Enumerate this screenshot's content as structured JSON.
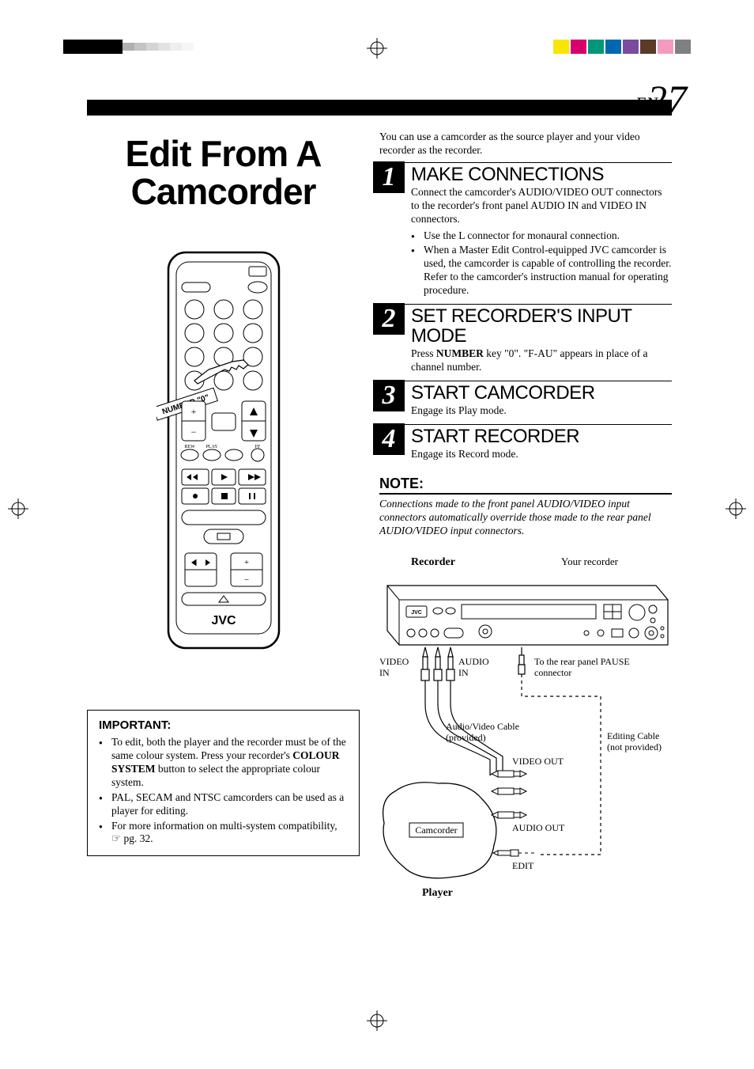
{
  "page": {
    "lang_tag": "EN",
    "number": "27"
  },
  "title": "Edit From A Camcorder",
  "remote_label": "NUMBER \"0\"",
  "brand": "JVC",
  "important": {
    "heading": "IMPORTANT:",
    "items": [
      "To edit, both the player and the recorder must be of the same colour system. Press your recorder's COLOUR SYSTEM button to select the appropriate colour system.",
      "PAL, SECAM and NTSC camcorders can be used as a player for editing.",
      "For more information on multi-system compatibility, ☞ pg. 32."
    ]
  },
  "intro": "You can use a camcorder as the source player and your video recorder as the recorder.",
  "steps": [
    {
      "n": "1",
      "title": "MAKE CONNECTIONS",
      "body": "Connect the camcorder's AUDIO/VIDEO OUT connectors to the recorder's front panel AUDIO IN and VIDEO IN connectors.",
      "bullets": [
        "Use the L connector for monaural connection.",
        "When a Master Edit Control-equipped JVC camcorder is used, the camcorder is capable of controlling the recorder. Refer to the camcorder's instruction manual for operating procedure."
      ]
    },
    {
      "n": "2",
      "title": "SET RECORDER'S INPUT MODE",
      "body": "Press NUMBER key \"0\". \"F-AU\" appears in place of a channel number.",
      "bullets": []
    },
    {
      "n": "3",
      "title": "START CAMCORDER",
      "body": "Engage its Play mode.",
      "bullets": []
    },
    {
      "n": "4",
      "title": "START RECORDER",
      "body": "Engage its Record mode.",
      "bullets": []
    }
  ],
  "note": {
    "heading": "NOTE:",
    "body": "Connections made to the front panel AUDIO/VIDEO input connectors automatically override those made to the rear panel AUDIO/VIDEO input connectors."
  },
  "diagram": {
    "recorder_label": "Recorder",
    "your_recorder": "Your recorder",
    "video_in": "VIDEO IN",
    "audio_in": "AUDIO IN",
    "pause_conn": "To the rear panel PAUSE connector",
    "av_cable": "Audio/Video Cable (provided)",
    "edit_cable": "Editing Cable (not provided)",
    "video_out": "VIDEO OUT",
    "audio_out": "AUDIO OUT",
    "edit": "EDIT",
    "camcorder": "Camcorder",
    "player": "Player"
  },
  "reg_colors_right": [
    "#f9e600",
    "#d9006c",
    "#009878",
    "#0068b3",
    "#7a4b9e",
    "#5b3a29",
    "#f49ac1",
    "#808080"
  ],
  "reg_grays_left": [
    "#000000",
    "#000000",
    "#000000",
    "#b0b0b0",
    "#c4c4c4",
    "#d4d4d4",
    "#e2e2e2",
    "#eeeeee",
    "#f6f6f6"
  ]
}
